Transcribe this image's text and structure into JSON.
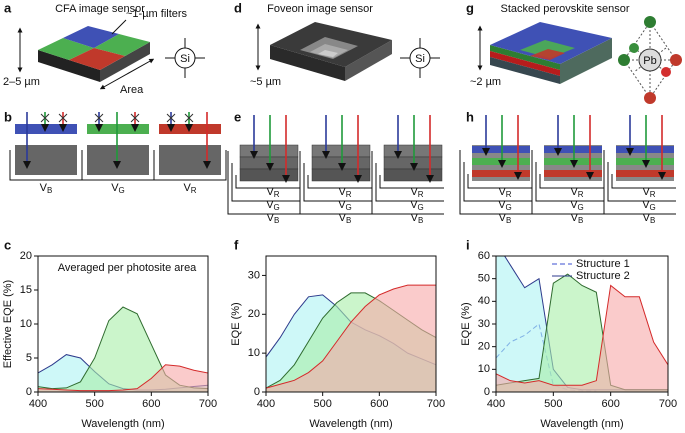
{
  "panels": {
    "a": {
      "label": "a",
      "title": "CFA image sensor",
      "filters": "~1-µm filters",
      "thickness": "2–5 µm",
      "area": "Area",
      "element": "Si"
    },
    "b": {
      "label": "b"
    },
    "d": {
      "label": "d",
      "title": "Foveon image sensor",
      "thickness": "~5 µm",
      "element": "Si"
    },
    "e": {
      "label": "e"
    },
    "g": {
      "label": "g",
      "title": "Stacked perovskite sensor",
      "thickness": "~2 µm",
      "element": "Pb"
    },
    "h": {
      "label": "h"
    },
    "voltage": {
      "symbol": "V",
      "subscripts": [
        "B",
        "G",
        "R"
      ]
    }
  },
  "chart_data": [
    {
      "type": "area",
      "label": "c",
      "annotation": "Averaged per photosite area",
      "xlabel": "Wavelength (nm)",
      "ylabel": "Effective EQE (%)",
      "x": [
        400,
        425,
        450,
        475,
        500,
        525,
        550,
        575,
        600,
        625,
        650,
        675,
        700
      ],
      "xlim": [
        400,
        700
      ],
      "xticks": [
        400,
        500,
        600,
        700
      ],
      "ylim": [
        0,
        20
      ],
      "yticks": [
        0,
        5,
        10,
        15,
        20
      ],
      "series": [
        {
          "color": "#2d3a8c",
          "fill": "#aef3f3",
          "values": [
            2.8,
            4,
            5.5,
            5,
            3,
            1.2,
            0.5,
            0.3,
            0.3,
            0.4,
            0.6,
            0.8,
            1
          ]
        },
        {
          "color": "#2f6b2f",
          "fill": "#a8eea8",
          "values": [
            0.8,
            0.5,
            0.6,
            1.5,
            5,
            10.5,
            12.5,
            11.5,
            7,
            2.5,
            1,
            0.6,
            0.5
          ]
        },
        {
          "color": "#d42a2a",
          "fill": "#f6a8a8",
          "values": [
            0.5,
            0.4,
            0.3,
            0.2,
            0.2,
            0.2,
            0.3,
            0.5,
            2,
            4,
            3.8,
            3.2,
            2.8
          ]
        }
      ]
    },
    {
      "type": "area",
      "label": "f",
      "xlabel": "Wavelength (nm)",
      "ylabel": "EQE (%)",
      "x": [
        400,
        425,
        450,
        475,
        500,
        525,
        550,
        575,
        600,
        625,
        650,
        675,
        700
      ],
      "xlim": [
        400,
        700
      ],
      "xticks": [
        400,
        500,
        600,
        700
      ],
      "ylim": [
        0,
        35
      ],
      "yticks": [
        0,
        10,
        20,
        30
      ],
      "series": [
        {
          "color": "#2d3a8c",
          "fill": "#aef3f3",
          "values": [
            9,
            14,
            20,
            24.5,
            25,
            22,
            18,
            16,
            14.5,
            12.5,
            10,
            8.5,
            7
          ]
        },
        {
          "color": "#2f6b2f",
          "fill": "#a8eea8",
          "values": [
            1,
            3,
            7,
            13,
            19,
            23,
            25.5,
            25.5,
            23.5,
            21,
            18.5,
            16,
            14
          ]
        },
        {
          "color": "#d42a2a",
          "fill": "#f6a8a8",
          "values": [
            1,
            2,
            3,
            5,
            8,
            13,
            18,
            22,
            25,
            26.5,
            27.5,
            27.5,
            27.5
          ]
        }
      ]
    },
    {
      "type": "area",
      "label": "i",
      "legend": "upper center",
      "xlabel": "Wavelength (nm)",
      "ylabel": "EQE (%)",
      "x": [
        400,
        425,
        450,
        475,
        500,
        525,
        550,
        575,
        600,
        625,
        650,
        675,
        700
      ],
      "xlim": [
        400,
        700
      ],
      "xticks": [
        400,
        500,
        600,
        700
      ],
      "ylim": [
        0,
        60
      ],
      "yticks": [
        0,
        10,
        20,
        30,
        40,
        50,
        60
      ],
      "series": [
        {
          "name": "Structure 1",
          "color": "#3b4fd0",
          "dash": true,
          "values": [
            15,
            22,
            25,
            30,
            3,
            1,
            0.5,
            0.5,
            null,
            null,
            null,
            null,
            null
          ]
        },
        {
          "name": "Structure 2",
          "color": "#2d3a8c",
          "fill": "#aef3f3",
          "values": [
            66,
            56,
            46,
            50,
            10,
            2,
            1,
            1,
            1,
            1,
            1,
            1,
            1
          ]
        },
        {
          "color": "#2f6b2f",
          "fill": "#a8eea8",
          "values": [
            3,
            4,
            5,
            6,
            48,
            52,
            47,
            44,
            3,
            1,
            1,
            1,
            1
          ]
        },
        {
          "color": "#d42a2a",
          "fill": "#f6a8a8",
          "values": [
            8,
            5,
            4,
            5,
            3,
            3,
            3,
            5,
            47,
            42,
            42,
            22,
            12
          ]
        }
      ]
    }
  ]
}
